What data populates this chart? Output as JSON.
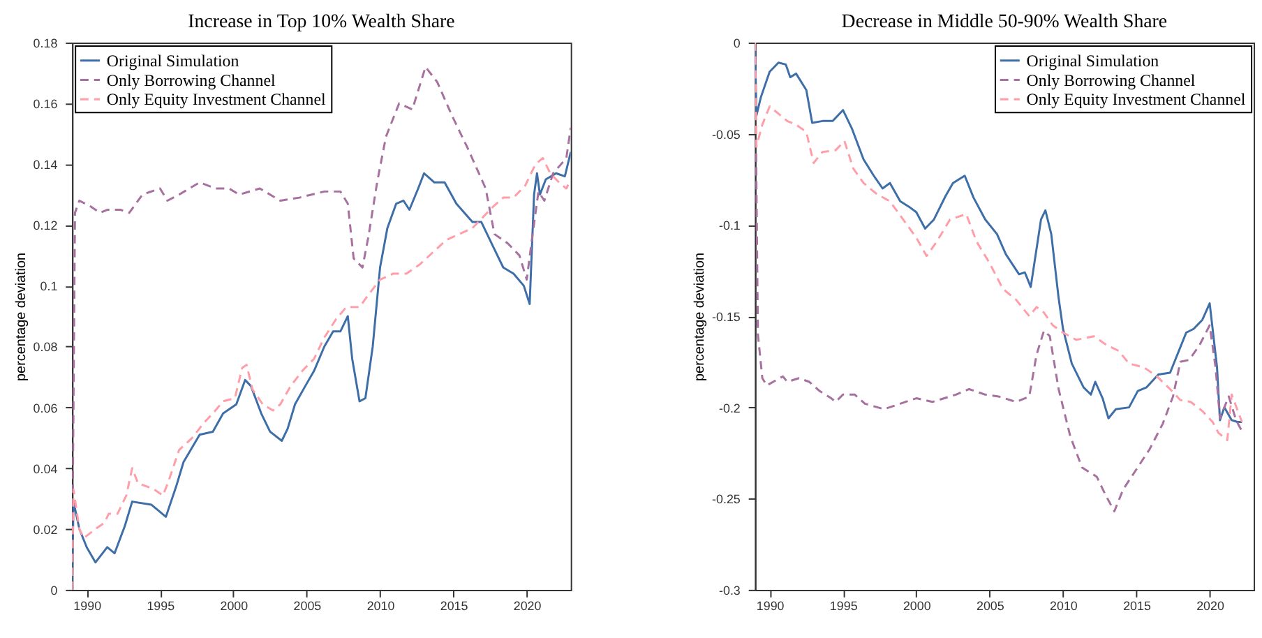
{
  "chart_data": [
    {
      "type": "line",
      "title": "Increase in Top 10% Wealth Share",
      "ylabel": "percentage deviation",
      "xlim": [
        1989,
        2023
      ],
      "xticks": [
        1990,
        1995,
        2000,
        2005,
        2010,
        2015,
        2020
      ],
      "ylim": [
        0,
        0.18
      ],
      "yticks": [
        0,
        0.02,
        0.04,
        0.06,
        0.08,
        0.1,
        0.12,
        0.14,
        0.16,
        0.18
      ],
      "grid": false,
      "legend": "top left",
      "series": [
        {
          "name": "Original Simulation",
          "color": "#3e6ea8",
          "line_style": "solid",
          "x": [
            1989,
            1989.1,
            1989.5,
            1990.0,
            1990.6,
            1991.4,
            1991.9,
            1992.6,
            1993.1,
            1994.4,
            1995.4,
            1996.1,
            1996.6,
            1997.7,
            1998.6,
            1999.3,
            2000.2,
            2000.8,
            2001.2,
            2001.9,
            2002.5,
            2003.3,
            2003.7,
            2004.2,
            2004.9,
            2005.5,
            2006.2,
            2006.8,
            2007.3,
            2007.8,
            2008.1,
            2008.6,
            2009.0,
            2009.5,
            2010.0,
            2010.5,
            2011.1,
            2011.6,
            2012.0,
            2012.6,
            2013.0,
            2013.7,
            2014.4,
            2015.2,
            2016.3,
            2016.9,
            2017.7,
            2018.4,
            2019.1,
            2019.8,
            2020.2,
            2020.5,
            2020.7,
            2020.9,
            2021.3,
            2022.0,
            2022.6,
            2023
          ],
          "values": [
            0,
            0.029,
            0.02,
            0.014,
            0.009,
            0.014,
            0.012,
            0.021,
            0.029,
            0.028,
            0.024,
            0.034,
            0.042,
            0.051,
            0.052,
            0.058,
            0.061,
            0.069,
            0.067,
            0.058,
            0.052,
            0.049,
            0.053,
            0.061,
            0.067,
            0.072,
            0.08,
            0.085,
            0.085,
            0.09,
            0.076,
            0.062,
            0.063,
            0.08,
            0.106,
            0.119,
            0.127,
            0.128,
            0.125,
            0.132,
            0.137,
            0.134,
            0.134,
            0.127,
            0.121,
            0.121,
            0.113,
            0.106,
            0.104,
            0.1,
            0.094,
            0.13,
            0.137,
            0.13,
            0.135,
            0.137,
            0.136,
            0.144
          ]
        },
        {
          "name": "Only Borrowing Channel",
          "color": "#a7709f",
          "line_style": "dashed",
          "x": [
            1989,
            1989.2,
            1989.5,
            1990.3,
            1990.9,
            1991.4,
            1992.3,
            1992.9,
            1993.8,
            1995.0,
            1995.5,
            1996.3,
            1997.7,
            1998.8,
            1999.7,
            2000.4,
            2001.8,
            2003.2,
            2004.5,
            2006.2,
            2007.3,
            2007.8,
            2008.2,
            2008.8,
            2009.2,
            2009.8,
            2010.4,
            2011.3,
            2012.2,
            2013.1,
            2013.9,
            2014.9,
            2016.0,
            2017.2,
            2017.8,
            2018.7,
            2019.5,
            2020.0,
            2020.4,
            2020.8,
            2021.2,
            2021.8,
            2022.7,
            2023
          ],
          "values": [
            0,
            0.124,
            0.128,
            0.126,
            0.124,
            0.125,
            0.125,
            0.124,
            0.13,
            0.132,
            0.128,
            0.13,
            0.134,
            0.132,
            0.132,
            0.13,
            0.132,
            0.128,
            0.129,
            0.131,
            0.131,
            0.127,
            0.109,
            0.106,
            0.116,
            0.134,
            0.149,
            0.16,
            0.158,
            0.172,
            0.167,
            0.156,
            0.145,
            0.132,
            0.117,
            0.114,
            0.11,
            0.102,
            0.117,
            0.131,
            0.128,
            0.137,
            0.142,
            0.152
          ]
        },
        {
          "name": "Only Equity Investment Channel",
          "color": "#ff9ea8",
          "line_style": "dashed",
          "x": [
            1989,
            1989.1,
            1989.5,
            1989.8,
            1990.6,
            1991.2,
            1991.5,
            1992.1,
            1992.7,
            1993.1,
            1993.5,
            1994.1,
            1994.6,
            1995.2,
            1995.6,
            1996.3,
            1997.2,
            1998.0,
            1998.6,
            1999.3,
            2000.1,
            2000.6,
            2000.9,
            2001.3,
            2002.0,
            2002.7,
            2003.2,
            2003.9,
            2004.7,
            2005.5,
            2006.2,
            2007.0,
            2007.7,
            2008.6,
            2009.2,
            2010.0,
            2010.9,
            2011.8,
            2012.7,
            2013.6,
            2014.5,
            2015.4,
            2016.3,
            2016.9,
            2017.7,
            2018.4,
            2019.1,
            2019.9,
            2020.6,
            2021.1,
            2021.6,
            2022.2,
            2022.7,
            2023
          ],
          "values": [
            0,
            0.033,
            0.02,
            0.017,
            0.02,
            0.022,
            0.025,
            0.025,
            0.031,
            0.04,
            0.035,
            0.034,
            0.033,
            0.031,
            0.036,
            0.046,
            0.05,
            0.055,
            0.058,
            0.062,
            0.063,
            0.073,
            0.074,
            0.066,
            0.061,
            0.059,
            0.061,
            0.067,
            0.072,
            0.076,
            0.083,
            0.089,
            0.093,
            0.093,
            0.097,
            0.102,
            0.104,
            0.104,
            0.107,
            0.111,
            0.115,
            0.117,
            0.119,
            0.122,
            0.126,
            0.129,
            0.129,
            0.133,
            0.14,
            0.142,
            0.137,
            0.134,
            0.132,
            0.135
          ]
        }
      ]
    },
    {
      "type": "line",
      "title": "Decrease in Middle 50-90% Wealth Share",
      "ylabel": "percentage deviation",
      "xlim": [
        1989,
        2023
      ],
      "xticks": [
        1990,
        1995,
        2000,
        2005,
        2010,
        2015,
        2020
      ],
      "ylim": [
        -0.3,
        0
      ],
      "yticks": [
        -0.3,
        -0.25,
        -0.2,
        -0.15,
        -0.1,
        -0.05,
        0
      ],
      "grid": false,
      "legend": "top right",
      "series": [
        {
          "name": "Original Simulation",
          "color": "#3e6ea8",
          "line_style": "solid",
          "x": [
            1989,
            1989.1,
            1989.4,
            1990.0,
            1990.6,
            1991.1,
            1991.4,
            1991.8,
            1992.5,
            1992.9,
            1993.6,
            1994.3,
            1995.0,
            1995.6,
            1996.4,
            1997.1,
            1997.7,
            1998.2,
            1998.9,
            1999.5,
            2000.0,
            2000.6,
            2001.2,
            2002.0,
            2002.5,
            2003.3,
            2003.9,
            2004.7,
            2005.5,
            2006.1,
            2007.0,
            2007.4,
            2007.8,
            2008.5,
            2008.8,
            2009.2,
            2009.7,
            2010.0,
            2010.6,
            2011.4,
            2011.9,
            2012.2,
            2012.7,
            2013.1,
            2013.6,
            2014.5,
            2015.1,
            2015.7,
            2016.5,
            2017.3,
            2017.9,
            2018.4,
            2018.9,
            2019.5,
            2020.0,
            2020.5,
            2020.7,
            2021.0,
            2021.5,
            2021.9,
            2022.2
          ],
          "values": [
            0,
            -0.04,
            -0.03,
            -0.016,
            -0.011,
            -0.012,
            -0.019,
            -0.017,
            -0.026,
            -0.044,
            -0.043,
            -0.043,
            -0.037,
            -0.047,
            -0.064,
            -0.073,
            -0.08,
            -0.077,
            -0.087,
            -0.09,
            -0.093,
            -0.102,
            -0.097,
            -0.084,
            -0.077,
            -0.073,
            -0.085,
            -0.097,
            -0.105,
            -0.116,
            -0.127,
            -0.126,
            -0.134,
            -0.097,
            -0.092,
            -0.105,
            -0.14,
            -0.157,
            -0.176,
            -0.189,
            -0.193,
            -0.186,
            -0.195,
            -0.206,
            -0.201,
            -0.2,
            -0.191,
            -0.189,
            -0.182,
            -0.181,
            -0.169,
            -0.159,
            -0.157,
            -0.152,
            -0.143,
            -0.178,
            -0.207,
            -0.2,
            -0.207,
            -0.208,
            -0.208
          ]
        },
        {
          "name": "Only Borrowing Channel",
          "color": "#a7709f",
          "line_style": "dashed",
          "x": [
            1989,
            1989.2,
            1989.5,
            1989.8,
            1990.9,
            1991.2,
            1992.0,
            1992.7,
            1993.4,
            1994.2,
            1994.5,
            1995.0,
            1995.8,
            1996.5,
            1997.8,
            1998.9,
            2000.0,
            2001.1,
            2002.7,
            2003.6,
            2004.7,
            2005.6,
            2006.8,
            2007.7,
            2008.2,
            2008.7,
            2009.1,
            2009.7,
            2010.5,
            2011.3,
            2012.3,
            2012.9,
            2013.5,
            2014.1,
            2015.0,
            2015.9,
            2016.8,
            2017.5,
            2018.0,
            2018.6,
            2019.3,
            2020.0,
            2020.4,
            2020.7,
            2021.3,
            2021.8,
            2022.2
          ],
          "values": [
            0,
            -0.16,
            -0.184,
            -0.188,
            -0.183,
            -0.186,
            -0.184,
            -0.186,
            -0.191,
            -0.195,
            -0.197,
            -0.193,
            -0.193,
            -0.198,
            -0.201,
            -0.198,
            -0.195,
            -0.197,
            -0.193,
            -0.19,
            -0.193,
            -0.194,
            -0.197,
            -0.194,
            -0.171,
            -0.158,
            -0.161,
            -0.19,
            -0.216,
            -0.233,
            -0.238,
            -0.248,
            -0.257,
            -0.245,
            -0.234,
            -0.223,
            -0.209,
            -0.194,
            -0.175,
            -0.174,
            -0.166,
            -0.155,
            -0.178,
            -0.206,
            -0.194,
            -0.207,
            -0.213
          ]
        },
        {
          "name": "Only Equity Investment Channel",
          "color": "#ff9ea8",
          "line_style": "dashed",
          "x": [
            1989,
            1989.1,
            1989.5,
            1990.0,
            1990.6,
            1991.2,
            1991.8,
            1992.5,
            1993.0,
            1993.6,
            1994.5,
            1995.1,
            1995.7,
            1996.4,
            1997.3,
            1998.2,
            1999.1,
            2000.0,
            2000.7,
            2001.4,
            2002.3,
            2003.4,
            2004.1,
            2005.0,
            2005.9,
            2006.8,
            2007.7,
            2008.2,
            2008.7,
            2009.3,
            2010.0,
            2010.9,
            2012.1,
            2013.0,
            2013.8,
            2014.5,
            2015.5,
            2016.4,
            2017.3,
            2018.0,
            2018.7,
            2019.5,
            2020.2,
            2020.6,
            2021.2,
            2021.5,
            2022.2
          ],
          "values": [
            0,
            -0.057,
            -0.045,
            -0.035,
            -0.039,
            -0.043,
            -0.045,
            -0.049,
            -0.066,
            -0.06,
            -0.059,
            -0.054,
            -0.069,
            -0.077,
            -0.083,
            -0.087,
            -0.097,
            -0.107,
            -0.117,
            -0.109,
            -0.097,
            -0.094,
            -0.109,
            -0.121,
            -0.135,
            -0.141,
            -0.15,
            -0.145,
            -0.148,
            -0.155,
            -0.159,
            -0.163,
            -0.161,
            -0.166,
            -0.169,
            -0.176,
            -0.178,
            -0.183,
            -0.19,
            -0.196,
            -0.197,
            -0.202,
            -0.208,
            -0.214,
            -0.218,
            -0.193,
            -0.208
          ]
        }
      ]
    }
  ]
}
